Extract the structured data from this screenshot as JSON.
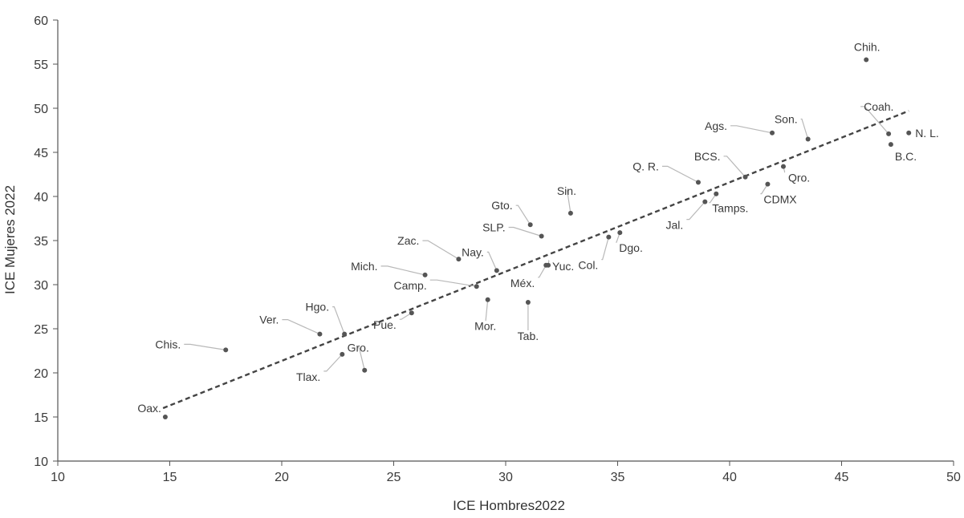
{
  "colors": {
    "axis": "#555555",
    "point": "#555555",
    "leader": "#b8b8b8",
    "trend": "#444444"
  },
  "chart_data": {
    "type": "scatter",
    "title": "",
    "xlabel": "ICE Hombres2022",
    "ylabel": "ICE Mujeres 2022",
    "xlim": [
      10,
      50
    ],
    "ylim": [
      10,
      60
    ],
    "xticks": [
      10,
      15,
      20,
      25,
      30,
      35,
      40,
      45,
      50
    ],
    "yticks": [
      10,
      15,
      20,
      25,
      30,
      35,
      40,
      45,
      50,
      55,
      60
    ],
    "grid": false,
    "legend": "none",
    "trendline": {
      "x": [
        14.7,
        48.0
      ],
      "y": [
        16.0,
        49.7
      ],
      "style": "dashed"
    },
    "points": [
      {
        "label": "Oax.",
        "x": 14.8,
        "y": 15.0
      },
      {
        "label": "Chis.",
        "x": 17.5,
        "y": 22.6
      },
      {
        "label": "Ver.",
        "x": 21.7,
        "y": 24.4
      },
      {
        "label": "Hgo.",
        "x": 22.8,
        "y": 24.4
      },
      {
        "label": "Tlax.",
        "x": 22.7,
        "y": 22.1
      },
      {
        "label": "Gro.",
        "x": 23.7,
        "y": 20.3
      },
      {
        "label": "Pue.",
        "x": 25.8,
        "y": 26.8
      },
      {
        "label": "Camp.",
        "x": 28.7,
        "y": 29.8
      },
      {
        "label": "Mich.",
        "x": 26.4,
        "y": 31.1
      },
      {
        "label": "Zac.",
        "x": 27.9,
        "y": 32.9
      },
      {
        "label": "Nay.",
        "x": 29.6,
        "y": 31.6
      },
      {
        "label": "Mor.",
        "x": 29.2,
        "y": 28.3
      },
      {
        "label": "Tab.",
        "x": 31.0,
        "y": 28.0
      },
      {
        "label": "Méx.",
        "x": 31.8,
        "y": 32.2
      },
      {
        "label": "Yuc.",
        "x": 31.9,
        "y": 32.2
      },
      {
        "label": "SLP.",
        "x": 31.6,
        "y": 35.5
      },
      {
        "label": "Gto.",
        "x": 31.1,
        "y": 36.8
      },
      {
        "label": "Sin.",
        "x": 32.9,
        "y": 38.1
      },
      {
        "label": "Col.",
        "x": 34.6,
        "y": 35.4
      },
      {
        "label": "Dgo.",
        "x": 35.1,
        "y": 35.9
      },
      {
        "label": "Jal.",
        "x": 38.9,
        "y": 39.4
      },
      {
        "label": "Tamps.",
        "x": 39.4,
        "y": 40.3
      },
      {
        "label": "Q. R.",
        "x": 38.6,
        "y": 41.6
      },
      {
        "label": "BCS.",
        "x": 40.7,
        "y": 42.2
      },
      {
        "label": "CDMX",
        "x": 41.7,
        "y": 41.4
      },
      {
        "label": "Qro.",
        "x": 42.4,
        "y": 43.4
      },
      {
        "label": "Ags.",
        "x": 41.9,
        "y": 47.2
      },
      {
        "label": "Son.",
        "x": 43.5,
        "y": 46.5
      },
      {
        "label": "Chih.",
        "x": 46.1,
        "y": 55.5
      },
      {
        "label": "Coah.",
        "x": 47.1,
        "y": 47.1
      },
      {
        "label": "B.C.",
        "x": 47.2,
        "y": 45.9
      },
      {
        "label": "N. L.",
        "x": 48.0,
        "y": 47.2
      }
    ]
  }
}
